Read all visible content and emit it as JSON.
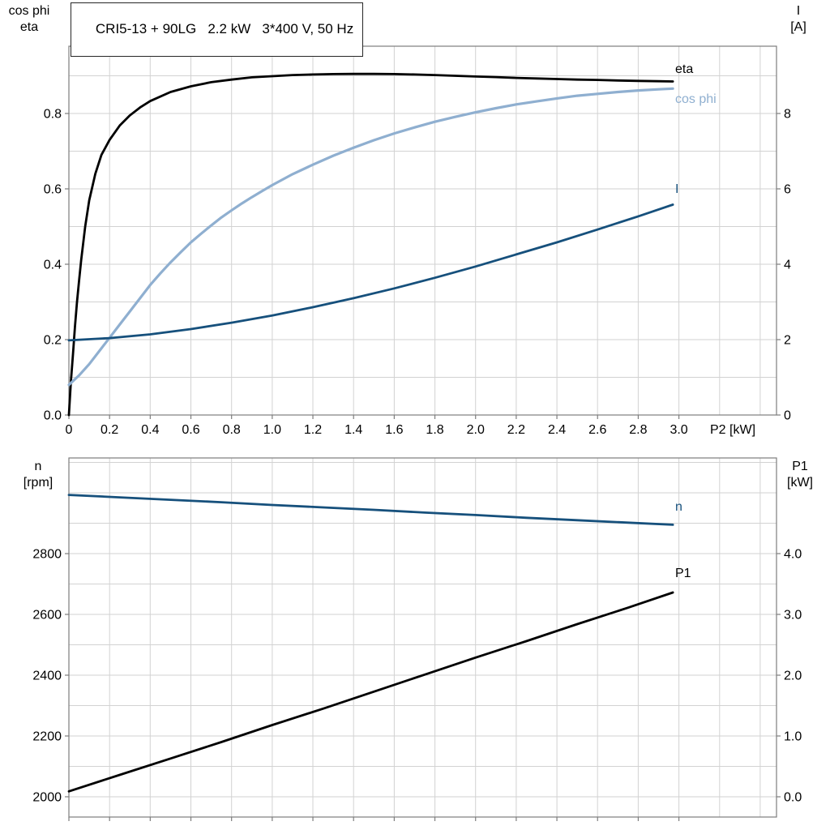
{
  "colors": {
    "grid": "#d2d2d2",
    "frame": "#7d7d7d",
    "curve_black": "#000000",
    "curve_light_blue": "#8fafd0",
    "curve_dark_blue": "#16507c"
  },
  "chart_data": [
    {
      "id": "motor-electrical-chart",
      "type": "line",
      "title": "CRI5-13 + 90LG   2.2 kW   3*400 V, 50 Hz",
      "x_axis": {
        "label": "P2 [kW]",
        "min": 0,
        "max": 3.48,
        "show_tick_labels": true,
        "tick_values": [
          0,
          0.2,
          0.4,
          0.6,
          0.8,
          1.0,
          1.2,
          1.4,
          1.6,
          1.8,
          2.0,
          2.2,
          2.4,
          2.6,
          2.8,
          3.0
        ],
        "tick_labels": [
          "0",
          "0.2",
          "0.4",
          "0.6",
          "0.8",
          "1.0",
          "1.2",
          "1.4",
          "1.6",
          "1.8",
          "2.0",
          "2.2",
          "2.4",
          "2.6",
          "2.8",
          "3.0"
        ],
        "grid": [
          0.2,
          0.4,
          0.6,
          0.8,
          1.0,
          1.2,
          1.4,
          1.6,
          1.8,
          2.0,
          2.2,
          2.4,
          2.6,
          2.8,
          3.0,
          3.2,
          3.4
        ]
      },
      "y_left": {
        "title_lines": [
          "cos phi",
          "eta"
        ],
        "min": 0,
        "max": 0.9785,
        "tick_values": [
          0,
          0.2,
          0.4,
          0.6,
          0.8
        ],
        "tick_labels": [
          "0.0",
          "0.2",
          "0.4",
          "0.6",
          "0.8"
        ],
        "grid": [
          0.1,
          0.2,
          0.3,
          0.4,
          0.5,
          0.6,
          0.7,
          0.8,
          0.9
        ]
      },
      "y_right": {
        "title_lines": [
          "I",
          "[A]"
        ],
        "min": 0,
        "max": 9.785,
        "tick_values": [
          0,
          2,
          4,
          6,
          8
        ],
        "tick_labels": [
          "0",
          "2",
          "4",
          "6",
          "8"
        ]
      },
      "series": [
        {
          "name": "eta",
          "axis": "left",
          "color": "curve_black",
          "points": [
            [
              0,
              0
            ],
            [
              0.01,
              0.09
            ],
            [
              0.02,
              0.16
            ],
            [
              0.03,
              0.235
            ],
            [
              0.04,
              0.3
            ],
            [
              0.05,
              0.355
            ],
            [
              0.06,
              0.41
            ],
            [
              0.08,
              0.5
            ],
            [
              0.1,
              0.57
            ],
            [
              0.13,
              0.64
            ],
            [
              0.16,
              0.69
            ],
            [
              0.2,
              0.73
            ],
            [
              0.25,
              0.768
            ],
            [
              0.3,
              0.795
            ],
            [
              0.35,
              0.816
            ],
            [
              0.4,
              0.833
            ],
            [
              0.5,
              0.857
            ],
            [
              0.6,
              0.872
            ],
            [
              0.7,
              0.883
            ],
            [
              0.8,
              0.89
            ],
            [
              0.9,
              0.896
            ],
            [
              1,
              0.899
            ],
            [
              1.1,
              0.902
            ],
            [
              1.2,
              0.9035
            ],
            [
              1.3,
              0.9045
            ],
            [
              1.4,
              0.905
            ],
            [
              1.5,
              0.905
            ],
            [
              1.6,
              0.9045
            ],
            [
              1.7,
              0.9035
            ],
            [
              1.8,
              0.902
            ],
            [
              1.9,
              0.9
            ],
            [
              2,
              0.898
            ],
            [
              2.1,
              0.8965
            ],
            [
              2.2,
              0.8945
            ],
            [
              2.3,
              0.893
            ],
            [
              2.4,
              0.8915
            ],
            [
              2.5,
              0.89
            ],
            [
              2.6,
              0.889
            ],
            [
              2.7,
              0.8875
            ],
            [
              2.8,
              0.8865
            ],
            [
              2.9,
              0.8855
            ],
            [
              2.97,
              0.885
            ]
          ]
        },
        {
          "name": "cos phi",
          "axis": "left",
          "color": "curve_light_blue",
          "points": [
            [
              0,
              0.08
            ],
            [
              0.05,
              0.105
            ],
            [
              0.1,
              0.135
            ],
            [
              0.15,
              0.17
            ],
            [
              0.2,
              0.205
            ],
            [
              0.25,
              0.24
            ],
            [
              0.3,
              0.275
            ],
            [
              0.35,
              0.31
            ],
            [
              0.4,
              0.345
            ],
            [
              0.45,
              0.376
            ],
            [
              0.5,
              0.405
            ],
            [
              0.55,
              0.432
            ],
            [
              0.6,
              0.458
            ],
            [
              0.65,
              0.481
            ],
            [
              0.7,
              0.503
            ],
            [
              0.75,
              0.524
            ],
            [
              0.8,
              0.543
            ],
            [
              0.85,
              0.561
            ],
            [
              0.9,
              0.578
            ],
            [
              0.95,
              0.594
            ],
            [
              1,
              0.61
            ],
            [
              1.1,
              0.639
            ],
            [
              1.2,
              0.664
            ],
            [
              1.3,
              0.688
            ],
            [
              1.4,
              0.709
            ],
            [
              1.5,
              0.729
            ],
            [
              1.6,
              0.747
            ],
            [
              1.7,
              0.763
            ],
            [
              1.8,
              0.778
            ],
            [
              1.9,
              0.791
            ],
            [
              2,
              0.803
            ],
            [
              2.1,
              0.814
            ],
            [
              2.2,
              0.824
            ],
            [
              2.3,
              0.832
            ],
            [
              2.4,
              0.84
            ],
            [
              2.5,
              0.847
            ],
            [
              2.6,
              0.852
            ],
            [
              2.7,
              0.857
            ],
            [
              2.8,
              0.861
            ],
            [
              2.9,
              0.864
            ],
            [
              2.97,
              0.866
            ]
          ]
        },
        {
          "name": "I",
          "axis": "right",
          "color": "curve_dark_blue",
          "points": [
            [
              0,
              1.98
            ],
            [
              0.2,
              2.04
            ],
            [
              0.4,
              2.14
            ],
            [
              0.6,
              2.28
            ],
            [
              0.8,
              2.45
            ],
            [
              1,
              2.64
            ],
            [
              1.2,
              2.86
            ],
            [
              1.4,
              3.1
            ],
            [
              1.6,
              3.36
            ],
            [
              1.8,
              3.64
            ],
            [
              2,
              3.94
            ],
            [
              2.2,
              4.26
            ],
            [
              2.4,
              4.58
            ],
            [
              2.6,
              4.92
            ],
            [
              2.8,
              5.27
            ],
            [
              2.97,
              5.58
            ]
          ]
        }
      ]
    },
    {
      "id": "speed-power-chart",
      "type": "line",
      "x_axis": {
        "label": "",
        "min": 0,
        "max": 3.48,
        "show_tick_labels": false,
        "tick_values": [
          0,
          0.2,
          0.4,
          0.6,
          0.8,
          1.0,
          1.2,
          1.4,
          1.6,
          1.8,
          2.0,
          2.2,
          2.4,
          2.6,
          2.8,
          3.0
        ],
        "tick_labels": [],
        "grid": [
          0.2,
          0.4,
          0.6,
          0.8,
          1.0,
          1.2,
          1.4,
          1.6,
          1.8,
          2.0,
          2.2,
          2.4,
          2.6,
          2.8,
          3.0,
          3.2,
          3.4
        ]
      },
      "y_left": {
        "title_lines": [
          "n",
          "[rpm]"
        ],
        "min": 1933.3,
        "max": 3114.7,
        "tick_values": [
          2000,
          2200,
          2400,
          2600,
          2800
        ],
        "tick_labels": [
          "2000",
          "2200",
          "2400",
          "2600",
          "2800"
        ],
        "grid": [
          2000,
          2100,
          2200,
          2300,
          2400,
          2500,
          2600,
          2700,
          2800,
          2900,
          3000,
          3100
        ]
      },
      "y_right": {
        "title_lines": [
          "P1",
          "[kW]"
        ],
        "min": -0.3333,
        "max": 5.5733,
        "tick_values": [
          0,
          1,
          2,
          3,
          4
        ],
        "tick_labels": [
          "0.0",
          "1.0",
          "2.0",
          "3.0",
          "4.0"
        ]
      },
      "series": [
        {
          "name": "n",
          "axis": "left",
          "color": "curve_dark_blue",
          "points": [
            [
              0,
              2993
            ],
            [
              0.25,
              2985
            ],
            [
              0.5,
              2977
            ],
            [
              0.75,
              2969
            ],
            [
              1,
              2960
            ],
            [
              1.25,
              2952
            ],
            [
              1.5,
              2944
            ],
            [
              1.75,
              2935
            ],
            [
              2,
              2927
            ],
            [
              2.25,
              2918
            ],
            [
              2.5,
              2910
            ],
            [
              2.75,
              2902
            ],
            [
              2.97,
              2895
            ]
          ]
        },
        {
          "name": "P1",
          "axis": "left_kw",
          "color": "curve_black",
          "points": [
            [
              0,
              0.09
            ],
            [
              0.25,
              0.36
            ],
            [
              0.5,
              0.63
            ],
            [
              0.75,
              0.9
            ],
            [
              1,
              1.18
            ],
            [
              1.25,
              1.45
            ],
            [
              1.5,
              1.73
            ],
            [
              1.75,
              2.01
            ],
            [
              2,
              2.29
            ],
            [
              2.25,
              2.56
            ],
            [
              2.5,
              2.84
            ],
            [
              2.75,
              3.11
            ],
            [
              2.97,
              3.36
            ]
          ]
        }
      ]
    }
  ]
}
